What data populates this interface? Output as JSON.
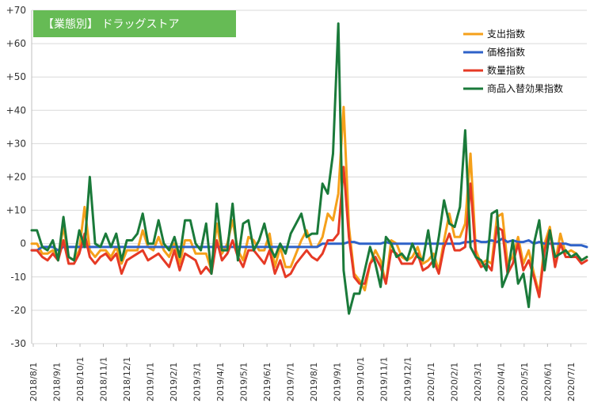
{
  "colors": {
    "支出指数": "#f5a01a",
    "価格指数": "#2e62c8",
    "数量指数": "#e63a25",
    "商品入替効果指数": "#1a7a3a",
    "title_bg": "#66bb55",
    "grid": "#d9d9d9"
  },
  "chart_data": {
    "type": "line",
    "title": "【業態別】 ドラッグストア",
    "ylim": [
      -30,
      70
    ],
    "yticks": [
      -30,
      -20,
      -10,
      0,
      10,
      20,
      30,
      40,
      50,
      60,
      70
    ],
    "ytick_labels": [
      "-30",
      "-20",
      "-10",
      "0",
      "+10",
      "+20",
      "+30",
      "+40",
      "+50",
      "+60",
      "+70"
    ],
    "x_labels": [
      "2018/8/1",
      "2018/9/1",
      "2018/10/1",
      "2018/11/1",
      "2018/12/1",
      "2019/1/1",
      "2019/2/1",
      "2019/3/1",
      "2019/4/1",
      "2019/5/1",
      "2019/6/1",
      "2019/7/1",
      "2019/8/1",
      "2019/9/1",
      "2019/10/1",
      "2019/11/1",
      "2019/12/1",
      "2020/1/1",
      "2020/2/1",
      "2020/3/1",
      "2020/4/1",
      "2020/5/1",
      "2020/6/1",
      "2020/7/1"
    ],
    "legend_position": "top-right",
    "grid": true,
    "series": [
      {
        "name": "支出指数",
        "values": [
          0,
          0,
          -3,
          -3,
          -2,
          -4,
          5,
          -4,
          -5,
          -2,
          11,
          -2,
          -4,
          -2,
          -2,
          -4,
          -1,
          -6,
          -2,
          -2,
          -2,
          4,
          -1,
          -2,
          2,
          -2,
          -4,
          0,
          -6,
          1,
          1,
          -3,
          -3,
          -3,
          -8,
          6,
          -3,
          0,
          7,
          -2,
          -5,
          2,
          1,
          -2,
          -2,
          3,
          -7,
          -1,
          -7,
          -7,
          -3,
          1,
          4,
          -1,
          -1,
          2,
          9,
          7,
          15,
          41,
          5,
          -9,
          -11,
          -14,
          -6,
          -2,
          -5,
          -12,
          1,
          0,
          -4,
          -5,
          -4,
          -1,
          -6,
          -5,
          -3,
          -8,
          1,
          9,
          2,
          2,
          6,
          27,
          -2,
          -6,
          -5,
          -6,
          8,
          9,
          -6,
          -4,
          2,
          -6,
          -2,
          -9,
          -15,
          0,
          5,
          -6,
          3,
          -3,
          -2,
          -3,
          -5,
          -4
        ]
      },
      {
        "name": "価格指数",
        "values": [
          -2,
          -2,
          -1,
          -1,
          -1,
          -2,
          -1,
          -1,
          -1,
          -1,
          -1,
          -1,
          -1,
          -1,
          -1,
          -1,
          -1,
          -1,
          -1,
          -1,
          -1,
          -1,
          -1,
          -1,
          -1,
          -1,
          -1,
          -1,
          -1,
          -1,
          -1,
          -1,
          -1,
          -1,
          -1,
          -1,
          -1,
          -1,
          -1,
          -1,
          -1,
          -1,
          -1,
          -1,
          -1,
          -1,
          -1,
          -1,
          -1,
          -1,
          -1,
          -1,
          -1,
          -1,
          -1,
          0,
          0,
          0,
          0,
          0,
          0.5,
          0.5,
          0,
          0,
          0,
          0,
          0,
          0.5,
          0,
          0,
          0,
          0,
          0,
          0,
          0,
          0,
          0,
          0,
          0,
          0,
          0,
          0,
          0.5,
          0.5,
          1,
          0.5,
          0.5,
          1,
          0.5,
          1.5,
          0.5,
          1,
          0.5,
          0.5,
          1,
          0,
          0.5,
          0,
          0,
          0,
          0,
          0,
          -0.5,
          -0.5,
          -0.5,
          -1
        ]
      },
      {
        "name": "数量指数",
        "values": [
          -2,
          -2,
          -4,
          -5,
          -3,
          -5,
          1,
          -6,
          -6,
          -3,
          3,
          -4,
          -6,
          -4,
          -3,
          -5,
          -3,
          -9,
          -5,
          -4,
          -3,
          -2,
          -5,
          -4,
          -3,
          -5,
          -7,
          -2,
          -8,
          -3,
          -4,
          -5,
          -9,
          -7,
          -9,
          1,
          -5,
          -3,
          1,
          -4,
          -7,
          -2,
          -2,
          -4,
          -6,
          -2,
          -9,
          -5,
          -10,
          -9,
          -6,
          -4,
          -2,
          -4,
          -5,
          -3,
          1,
          1,
          3,
          23,
          2,
          -10,
          -12,
          -12,
          -6,
          -4,
          -7,
          -12,
          -2,
          -3,
          -6,
          -6,
          -6,
          -3,
          -8,
          -7,
          -5,
          -9,
          -1,
          3,
          -2,
          -2,
          -1,
          18,
          -4,
          -7,
          -6,
          -8,
          5,
          4,
          -9,
          -6,
          0,
          -8,
          -5,
          -10,
          -16,
          -2,
          4,
          -7,
          0,
          -4,
          -4,
          -4,
          -6,
          -5
        ]
      },
      {
        "name": "商品入替効果指数",
        "values": [
          4,
          4,
          -1,
          -2,
          1,
          -5,
          8,
          -4,
          -5,
          4,
          -1,
          20,
          0,
          -1,
          3,
          -1,
          3,
          -5,
          1,
          1,
          3,
          9,
          0,
          0,
          7,
          0,
          -2,
          2,
          -4,
          7,
          7,
          0,
          -2,
          6,
          -9,
          12,
          -2,
          -2,
          12,
          -5,
          6,
          7,
          -2,
          1,
          6,
          -1,
          -4,
          0,
          -3,
          3,
          6,
          9,
          2,
          3,
          3,
          18,
          15,
          27,
          66,
          -8,
          -21,
          -15,
          -15,
          -8,
          -1,
          -6,
          -13,
          2,
          0,
          -4,
          -3,
          -5,
          0,
          -4,
          -5,
          4,
          -7,
          2,
          13,
          6,
          5,
          11,
          34,
          -1,
          -4,
          -5,
          -8,
          9,
          10,
          -13,
          -9,
          1,
          -12,
          -9,
          -19,
          0,
          7,
          -8,
          4,
          -4,
          -3,
          -2,
          -4,
          -3,
          -5,
          -4
        ]
      }
    ]
  }
}
